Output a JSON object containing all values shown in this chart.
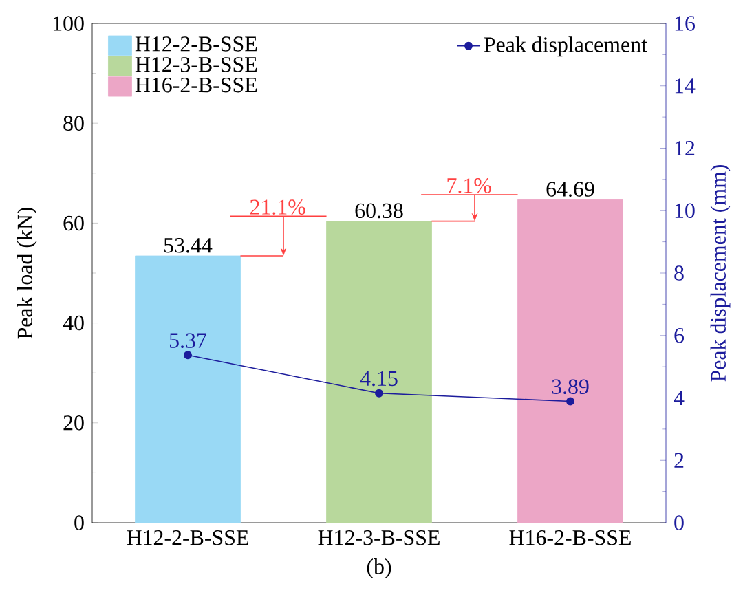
{
  "chart_data": {
    "type": "bar",
    "categories": [
      "H12-2-B-SSE",
      "H12-3-B-SSE",
      "H16-2-B-SSE"
    ],
    "xlabel": "(b)",
    "ylabel": "Peak load (kN)",
    "y2label": "Peak displacement (mm)",
    "series": [
      {
        "name": "H12-2-B-SSE",
        "color": "#99d9f5",
        "values": [
          53.44,
          null,
          null
        ]
      },
      {
        "name": "H12-3-B-SSE",
        "color": "#b8d89c",
        "values": [
          null,
          60.38,
          null
        ]
      },
      {
        "name": "H16-2-B-SSE",
        "color": "#eca6c6",
        "values": [
          null,
          null,
          64.69
        ]
      },
      {
        "name": "Peak displacement",
        "type": "line",
        "axis": "y2",
        "color": "#1c1c9c",
        "values": [
          5.37,
          4.15,
          3.89
        ]
      }
    ],
    "ylim": [
      0,
      100
    ],
    "yticks": [
      0,
      20,
      40,
      60,
      80,
      100
    ],
    "y2lim": [
      0,
      16
    ],
    "y2ticks": [
      0,
      2,
      4,
      6,
      8,
      10,
      12,
      14,
      16
    ],
    "data_labels": true,
    "legend": "top",
    "marker": "circle",
    "annotations": [
      "21.1%",
      "7.1%"
    ]
  }
}
